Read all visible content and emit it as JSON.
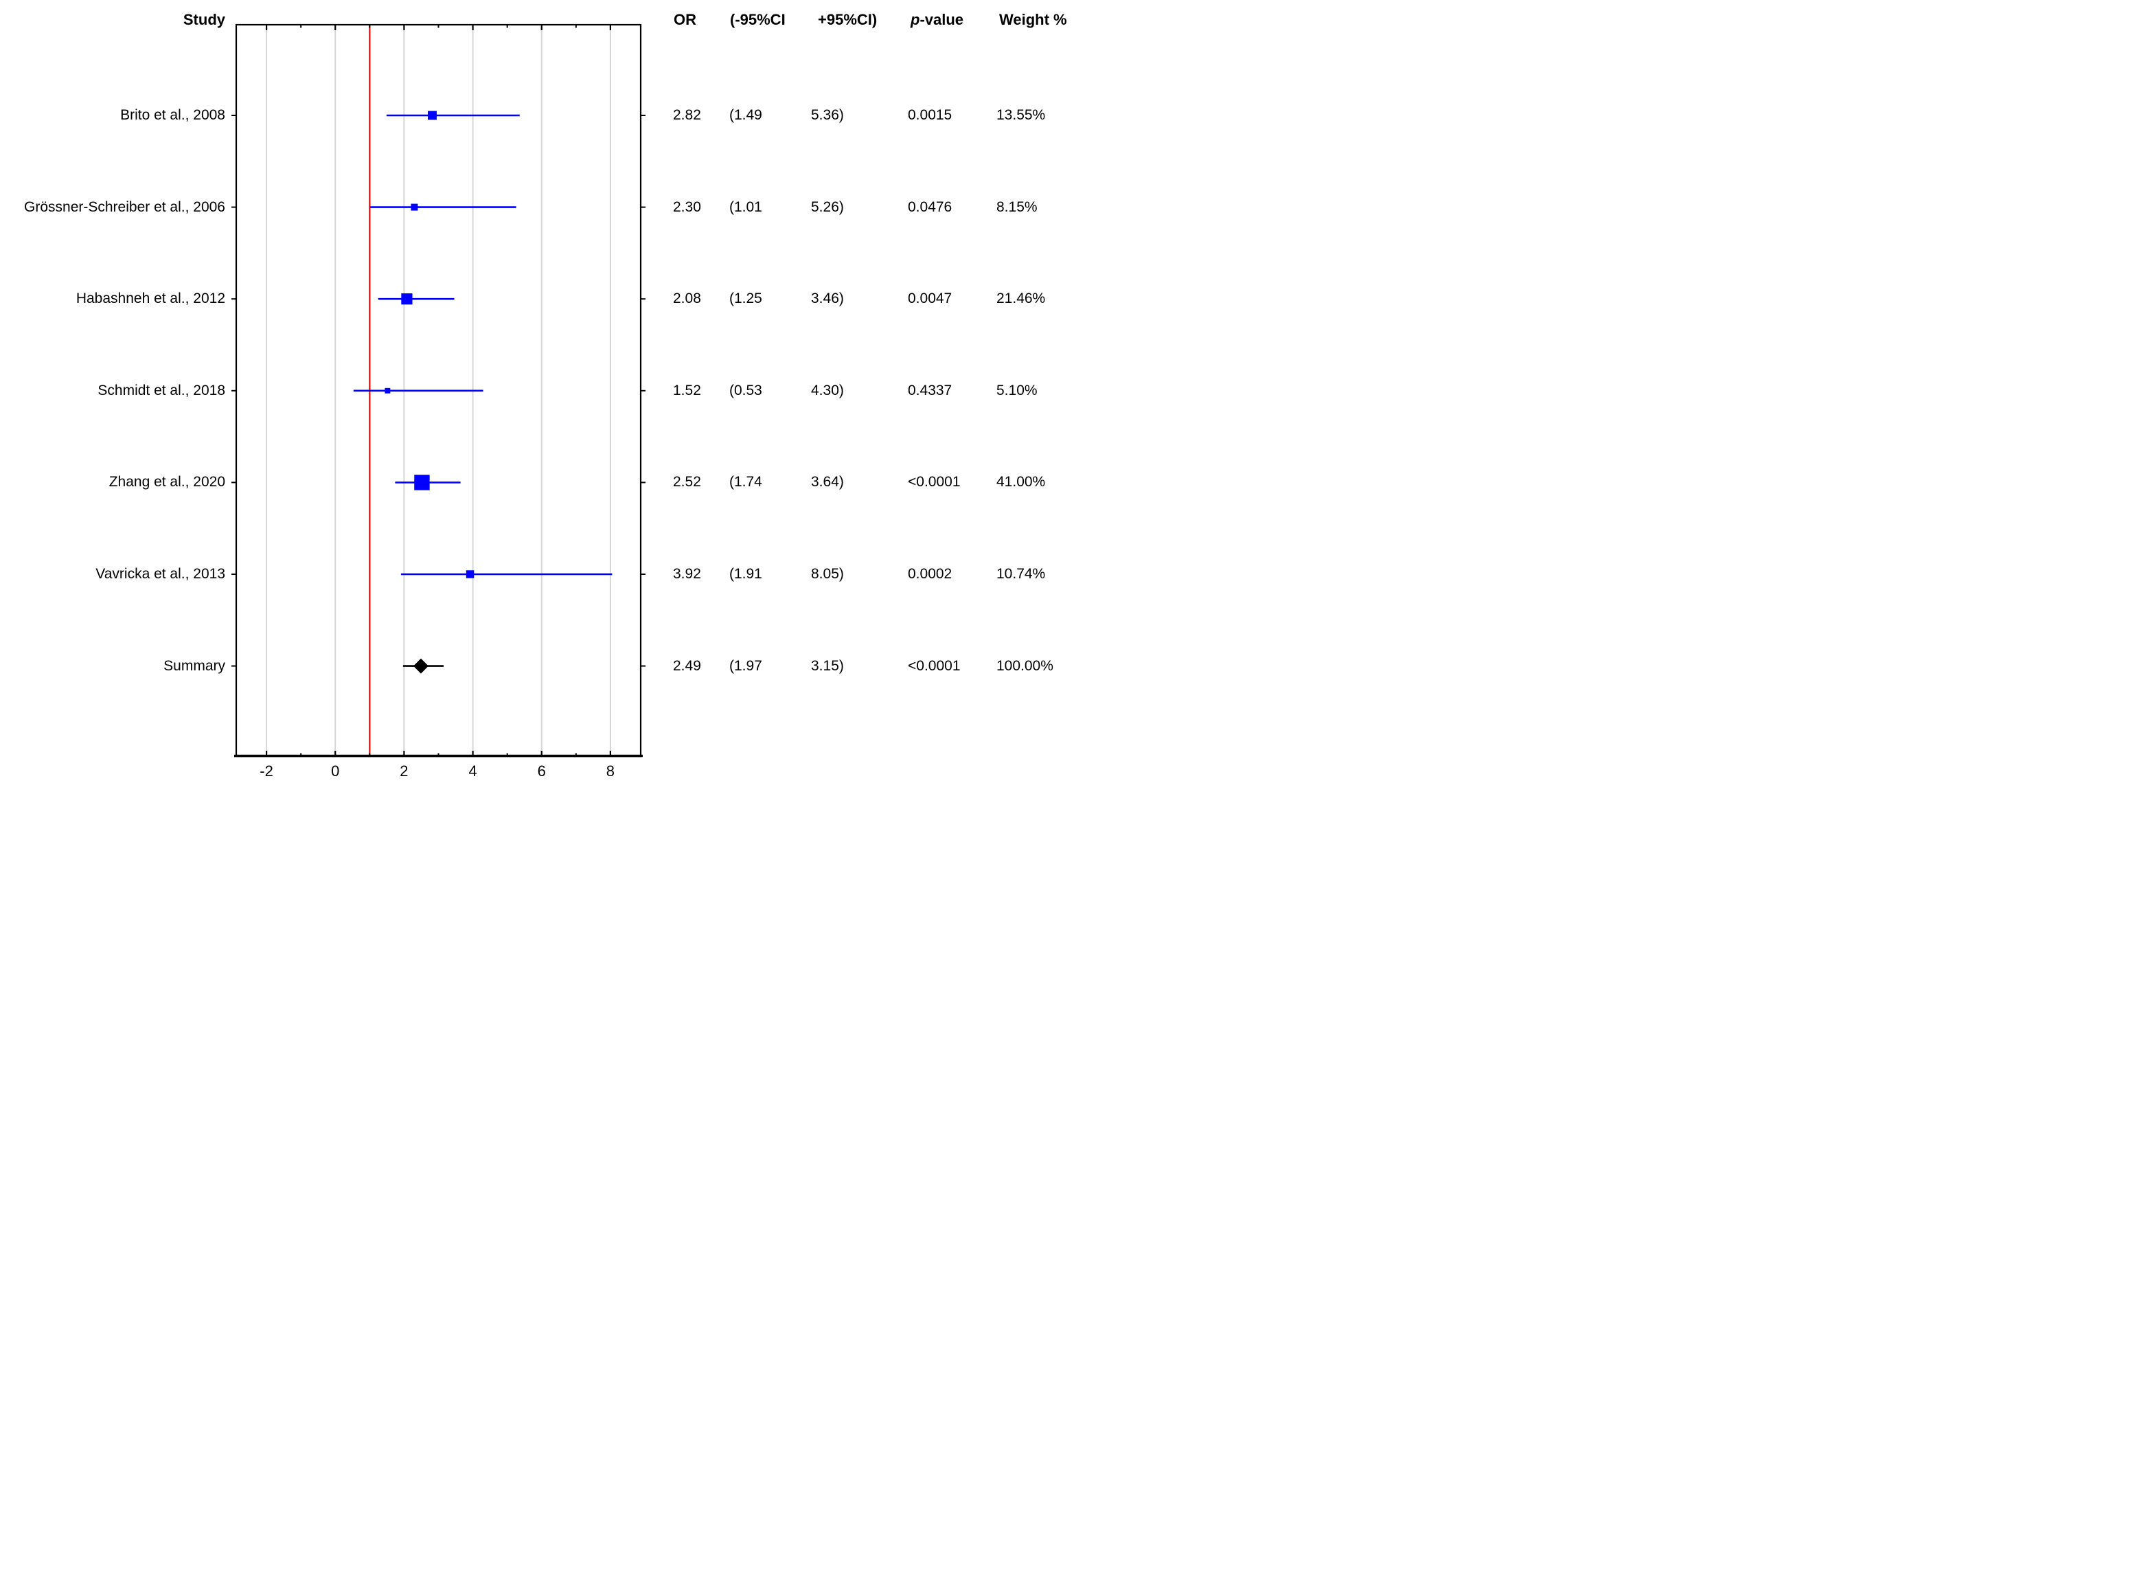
{
  "headers": {
    "study": "Study",
    "or": "OR",
    "ci_low": "(-95%CI",
    "ci_high": "+95%CI)",
    "p_italic": "p",
    "p_rest": "-value",
    "weight": "Weight %"
  },
  "chart_data": {
    "type": "forest",
    "x_axis": {
      "min": -2.9,
      "max": 8.9,
      "major_ticks": [
        -2,
        0,
        2,
        4,
        6,
        8
      ],
      "minor_ticks": [
        -1,
        1,
        3,
        5,
        7
      ],
      "reference_line_x": 1,
      "gridlines_at_major_ticks": true
    },
    "series": [
      {
        "label": "Brito et al., 2008",
        "or": 2.82,
        "ci_low": 1.49,
        "ci_high": 5.36,
        "p_value": "0.0015",
        "weight_pct": 13.55,
        "marker": "square"
      },
      {
        "label": "Grössner-Schreiber et al., 2006",
        "or": 2.3,
        "ci_low": 1.01,
        "ci_high": 5.26,
        "p_value": "0.0476",
        "weight_pct": 8.15,
        "marker": "square"
      },
      {
        "label": "Habashneh et al., 2012",
        "or": 2.08,
        "ci_low": 1.25,
        "ci_high": 3.46,
        "p_value": "0.0047",
        "weight_pct": 21.46,
        "marker": "square"
      },
      {
        "label": "Schmidt et al., 2018",
        "or": 1.52,
        "ci_low": 0.53,
        "ci_high": 4.3,
        "p_value": "0.4337",
        "weight_pct": 5.1,
        "marker": "square"
      },
      {
        "label": "Zhang et al., 2020",
        "or": 2.52,
        "ci_low": 1.74,
        "ci_high": 3.64,
        "p_value": "<0.0001",
        "weight_pct": 41.0,
        "marker": "square"
      },
      {
        "label": "Vavricka et al., 2013",
        "or": 3.92,
        "ci_low": 1.91,
        "ci_high": 8.05,
        "p_value": "0.0002",
        "weight_pct": 10.74,
        "marker": "square"
      },
      {
        "label": "Summary",
        "or": 2.49,
        "ci_low": 1.97,
        "ci_high": 3.15,
        "p_value": "<0.0001",
        "weight_pct": 100.0,
        "marker": "diamond"
      }
    ],
    "colors": {
      "study_marker": "#0000ff",
      "study_ci_line": "#0000ff",
      "summary_marker": "#000000",
      "summary_ci_line": "#000000",
      "reference_line": "#ff0000",
      "gridline": "#d6d6d6",
      "border": "#000000",
      "text": "#000000"
    }
  }
}
